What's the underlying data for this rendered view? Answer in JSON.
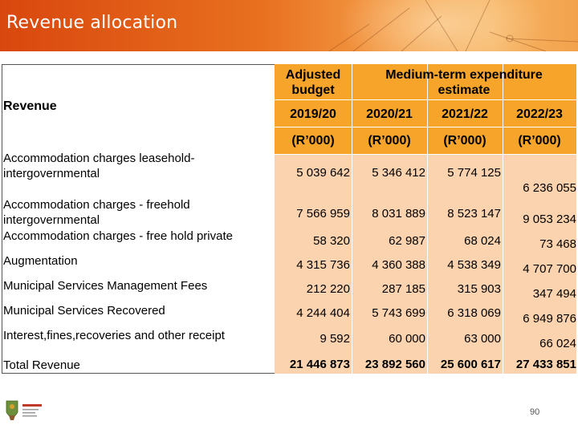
{
  "slide": {
    "title": "Revenue allocation",
    "page_number": "90"
  },
  "table": {
    "row_header": "Revenue",
    "col_groups": {
      "adjusted": "Adjusted budget",
      "mtef": "Medium-term expenditure estimate"
    },
    "years": [
      "2019/20",
      "2020/21",
      "2021/22",
      "2022/23"
    ],
    "units": [
      "(R’000)",
      "(R’000)",
      "(R’000)",
      "(R’000)"
    ],
    "rows": [
      {
        "label": "Accommodation charges leasehold-intergovernmental",
        "values": [
          "5 039 642",
          "5 346 412",
          "5 774 125",
          "6 236 055"
        ]
      },
      {
        "label": "Accommodation charges - freehold intergovernmental",
        "values": [
          "7 566 959",
          "8 031 889",
          "8 523 147",
          "9 053 234"
        ]
      },
      {
        "label": "Accommodation charges - free hold private",
        "values": [
          "58 320",
          "62 987",
          "68 024",
          "73 468"
        ]
      },
      {
        "label": "Augmentation",
        "values": [
          "4 315 736",
          "4 360 388",
          "4 538 349",
          "4 707 700"
        ]
      },
      {
        "label": "Municipal Services Management Fees",
        "values": [
          "212 220",
          "287 185",
          "315 903",
          "347 494"
        ]
      },
      {
        "label": "Municipal Services Recovered",
        "values": [
          "4 244 404",
          "5 743 699",
          "6 318 069",
          "6 949 876"
        ]
      },
      {
        "label": "Interest,fines,recoveries and other receipt",
        "values": [
          "9 592",
          "60 000",
          "63 000",
          "66 024"
        ]
      },
      {
        "label": "Total Revenue",
        "values": [
          "21 446 873",
          "23 892 560",
          "25 600 617",
          "27 433 851"
        ]
      }
    ]
  },
  "colors": {
    "banner": "#e8701f",
    "header_fill": "#f6a42a",
    "body_fill": "#fbd3ae"
  },
  "icons": {
    "logo": "coat-of-arms-logo"
  }
}
